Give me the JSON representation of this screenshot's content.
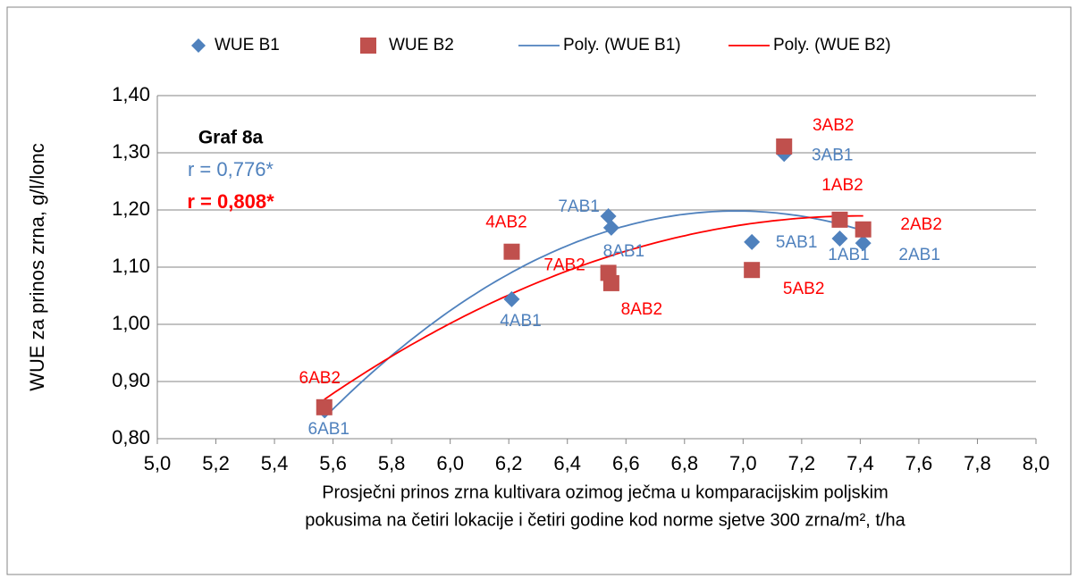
{
  "chart_data": {
    "type": "scatter",
    "annotations": [
      "Graf 8a",
      "r = 0,776*",
      "r = 0,808*"
    ],
    "xlabel": [
      "Prosječni prinos zrna kultivara ozimog ječma u komparacijskim poljskim",
      "pokusima na četiri lokacije i četiri godine kod norme sjetve 300 zrna/m², t/ha"
    ],
    "ylabel": "WUE za prinos zrna, g/l/lonc",
    "series": [
      {
        "name": "WUE B1",
        "color": "#4f81bd",
        "marker": "diamond",
        "label_color": "#4f81bd",
        "x": [
          5.57,
          6.21,
          6.54,
          6.55,
          7.03,
          7.14,
          7.33,
          7.41
        ],
        "values": [
          0.85,
          1.044,
          1.189,
          1.169,
          1.144,
          1.298,
          1.15,
          1.142
        ],
        "labels": [
          "6AB1",
          "4AB1",
          "7AB1",
          "8AB1",
          "5AB1",
          "3AB1",
          "1AB1",
          "2AB1"
        ]
      },
      {
        "name": "WUE B2",
        "color": "#c0504d",
        "marker": "square",
        "label_color": "#ff0000",
        "x": [
          5.57,
          6.21,
          6.54,
          6.55,
          7.03,
          7.14,
          7.33,
          7.41
        ],
        "values": [
          0.855,
          1.127,
          1.09,
          1.072,
          1.095,
          1.311,
          1.183,
          1.166
        ],
        "labels": [
          "6AB2",
          "4AB2",
          "7AB2",
          "8AB2",
          "5AB2",
          "3AB2",
          "1AB2",
          "2AB2"
        ]
      }
    ],
    "trendlines": [
      {
        "name": "Poly. (WUE B1)",
        "color": "#4f81bd",
        "of": 0,
        "order": 2
      },
      {
        "name": "Poly. (WUE B2)",
        "color": "#ff0000",
        "of": 1,
        "order": 2
      }
    ],
    "xlim": [
      5.0,
      8.0
    ],
    "xticks": [
      {
        "value": 5.0,
        "label": "5,0"
      },
      {
        "value": 5.2,
        "label": "5,2"
      },
      {
        "value": 5.4,
        "label": "5,4"
      },
      {
        "value": 5.6,
        "label": "5,6"
      },
      {
        "value": 5.8,
        "label": "5,8"
      },
      {
        "value": 6.0,
        "label": "6,0"
      },
      {
        "value": 6.2,
        "label": "6,2"
      },
      {
        "value": 6.4,
        "label": "6,4"
      },
      {
        "value": 6.6,
        "label": "6,6"
      },
      {
        "value": 6.8,
        "label": "6,8"
      },
      {
        "value": 7.0,
        "label": "7,0"
      },
      {
        "value": 7.2,
        "label": "7,2"
      },
      {
        "value": 7.4,
        "label": "7,4"
      },
      {
        "value": 7.6,
        "label": "7,6"
      },
      {
        "value": 7.8,
        "label": "7,8"
      },
      {
        "value": 8.0,
        "label": "8,0"
      }
    ],
    "ylim": [
      0.8,
      1.4
    ],
    "yticks": [
      {
        "value": 0.8,
        "label": "0,80"
      },
      {
        "value": 0.9,
        "label": "0,90"
      },
      {
        "value": 1.0,
        "label": "1,00"
      },
      {
        "value": 1.1,
        "label": "1,10"
      },
      {
        "value": 1.2,
        "label": "1,20"
      },
      {
        "value": 1.3,
        "label": "1,30"
      },
      {
        "value": 1.4,
        "label": "1,40"
      }
    ],
    "grid": true,
    "legend": "top"
  }
}
